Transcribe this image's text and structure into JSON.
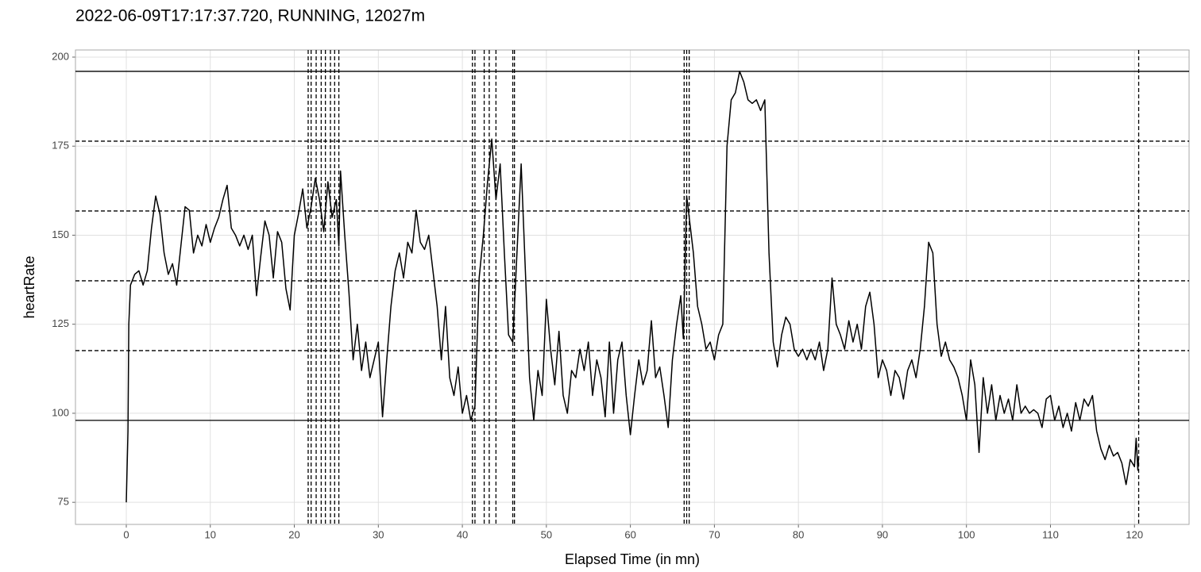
{
  "chart_data": {
    "type": "line",
    "title": "2022-06-09T17:17:37.720, RUNNING, 12027m",
    "x_label": "Elapsed Time (in mn)",
    "y_label": "heartRate",
    "color": "#000000",
    "grid": true,
    "xlim": [
      -6.05,
      126.5
    ],
    "ylim": [
      68.8,
      202
    ],
    "xticks": [
      0,
      10,
      20,
      30,
      40,
      50,
      60,
      70,
      80,
      90,
      100,
      110,
      120
    ],
    "yticks": [
      75,
      100,
      125,
      150,
      175,
      200
    ],
    "hlines": [
      {
        "value": 196,
        "style": "solid"
      },
      {
        "value": 98,
        "style": "solid"
      },
      {
        "value": 176.4,
        "style": "dashed"
      },
      {
        "value": 156.8,
        "style": "dashed"
      },
      {
        "value": 137.2,
        "style": "dashed"
      },
      {
        "value": 117.6,
        "style": "dashed"
      }
    ],
    "vlines": [
      21.65,
      22.0,
      22.6,
      23.2,
      23.7,
      24.3,
      24.8,
      25.3,
      41.2,
      41.5,
      42.6,
      43.2,
      44.0,
      46.0,
      46.2,
      66.4,
      66.7,
      67.0,
      120.5
    ],
    "x": [
      0,
      0.2,
      0.3,
      0.5,
      1,
      1.5,
      2,
      2.5,
      3,
      3.5,
      4,
      4.5,
      5,
      5.5,
      6,
      6.5,
      7,
      7.5,
      8,
      8.5,
      9,
      9.5,
      10,
      10.5,
      11,
      11.5,
      12,
      12.5,
      13,
      13.5,
      14,
      14.5,
      15,
      15.5,
      16,
      16.5,
      17,
      17.5,
      18,
      18.5,
      19,
      19.5,
      20,
      20.5,
      21,
      21.5,
      22,
      22.5,
      23,
      23.5,
      24,
      24.5,
      25,
      25.3,
      25.5,
      26,
      26.5,
      27,
      27.5,
      28,
      28.5,
      29,
      29.5,
      30,
      30.5,
      31,
      31.5,
      32,
      32.5,
      33,
      33.5,
      34,
      34.5,
      35,
      35.5,
      36,
      36.5,
      37,
      37.5,
      38,
      38.5,
      39,
      39.5,
      40,
      40.5,
      41,
      41.5,
      42,
      42.5,
      43,
      43.5,
      44,
      44.5,
      45,
      45.5,
      46,
      46.5,
      47,
      47.5,
      48,
      48.5,
      49,
      49.5,
      50,
      50.5,
      51,
      51.5,
      52,
      52.5,
      53,
      53.5,
      54,
      54.5,
      55,
      55.5,
      56,
      56.5,
      57,
      57.5,
      58,
      58.5,
      59,
      59.5,
      60,
      60.5,
      61,
      61.5,
      62,
      62.5,
      63,
      63.5,
      64,
      64.5,
      65,
      65.5,
      66,
      66.3,
      66.7,
      67,
      67.5,
      68,
      68.5,
      69,
      69.5,
      70,
      70.5,
      71,
      71.5,
      72,
      72.5,
      73,
      73.5,
      74,
      74.5,
      75,
      75.5,
      76,
      76.5,
      77,
      77.5,
      78,
      78.5,
      79,
      79.5,
      80,
      80.5,
      81,
      81.5,
      82,
      82.5,
      83,
      83.5,
      84,
      84.5,
      85,
      85.5,
      86,
      86.5,
      87,
      87.5,
      88,
      88.5,
      89,
      89.5,
      90,
      90.5,
      91,
      91.5,
      92,
      92.5,
      93,
      93.5,
      94,
      94.5,
      95,
      95.5,
      96,
      96.5,
      97,
      97.5,
      98,
      98.5,
      99,
      99.5,
      100,
      100.5,
      101,
      101.5,
      102,
      102.5,
      103,
      103.5,
      104,
      104.5,
      105,
      105.5,
      106,
      106.5,
      107,
      107.5,
      108,
      108.5,
      109,
      109.5,
      110,
      110.5,
      111,
      111.5,
      112,
      112.5,
      113,
      113.5,
      114,
      114.5,
      115,
      115.5,
      116,
      116.5,
      117,
      117.5,
      118,
      118.5,
      119,
      119.5,
      120,
      120.2,
      120.4,
      120.5
    ],
    "values": [
      75,
      95,
      125,
      136,
      139,
      140,
      136,
      140,
      152,
      161,
      156,
      145,
      139,
      142,
      136,
      147,
      158,
      157,
      145,
      150,
      147,
      153,
      148,
      152,
      155,
      160,
      164,
      152,
      150,
      147,
      150,
      146,
      150,
      133,
      144,
      154,
      150,
      138,
      151,
      148,
      135,
      129,
      150,
      156,
      163,
      152,
      158,
      166,
      160,
      151,
      165,
      155,
      160,
      147,
      168,
      150,
      134,
      115,
      125,
      112,
      120,
      110,
      115,
      120,
      99,
      115,
      130,
      140,
      145,
      138,
      148,
      145,
      157,
      148,
      146,
      150,
      140,
      130,
      115,
      130,
      110,
      105,
      113,
      100,
      105,
      98,
      102,
      138,
      150,
      165,
      177,
      160,
      170,
      145,
      122,
      120,
      145,
      170,
      140,
      110,
      98,
      112,
      105,
      132,
      118,
      108,
      123,
      105,
      100,
      112,
      110,
      118,
      112,
      120,
      105,
      115,
      110,
      99,
      120,
      100,
      115,
      120,
      105,
      94,
      105,
      115,
      108,
      112,
      126,
      110,
      113,
      105,
      96,
      115,
      125,
      133,
      121,
      161,
      155,
      145,
      130,
      125,
      118,
      120,
      115,
      122,
      125,
      175,
      188,
      190,
      196,
      193,
      188,
      187,
      188,
      185,
      188,
      145,
      120,
      113,
      122,
      127,
      125,
      118,
      116,
      118,
      115,
      118,
      115,
      120,
      112,
      118,
      138,
      125,
      122,
      118,
      126,
      120,
      125,
      118,
      130,
      134,
      125,
      110,
      115,
      112,
      105,
      112,
      110,
      104,
      112,
      115,
      110,
      118,
      130,
      148,
      145,
      125,
      116,
      120,
      115,
      113,
      110,
      105,
      98,
      115,
      108,
      89,
      110,
      100,
      108,
      98,
      105,
      100,
      104,
      98,
      108,
      100,
      102,
      100,
      101,
      100,
      96,
      104,
      105,
      98,
      102,
      96,
      100,
      95,
      103,
      98,
      104,
      102,
      105,
      95,
      90,
      87,
      91,
      88,
      89,
      86,
      80,
      87,
      85,
      93,
      84,
      88
    ]
  }
}
